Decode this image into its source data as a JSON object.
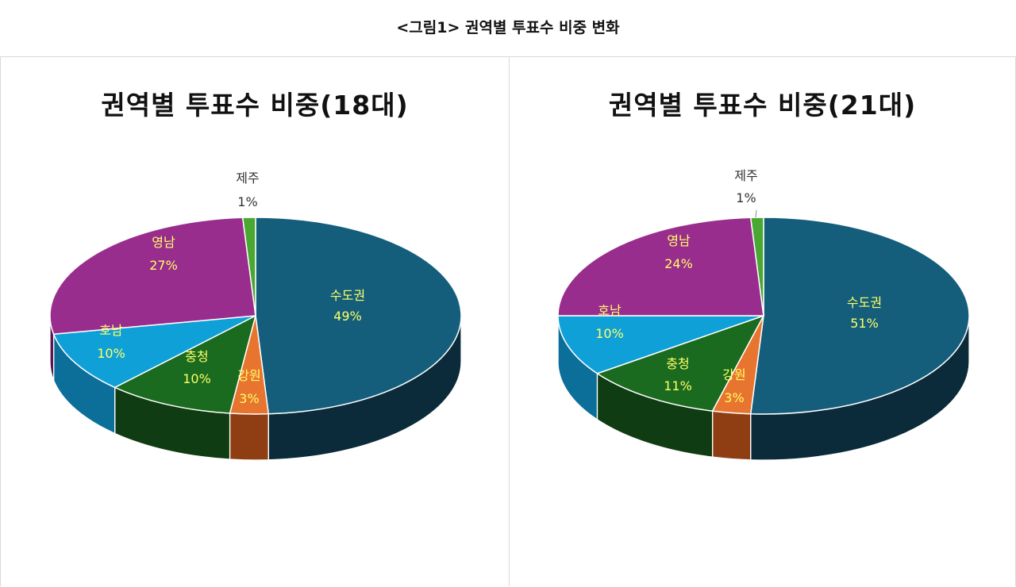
{
  "page": {
    "title": "<그림1> 권역별 투표수 비중 변화"
  },
  "chart_data": [
    {
      "type": "pie",
      "title": "권역별 투표수 비중(18대)",
      "slices": [
        {
          "label": "수도권",
          "value": 49,
          "display": "49%",
          "color": "#145e7c",
          "side": "#0b2b3a",
          "label_color": "#ffff66"
        },
        {
          "label": "강원",
          "value": 3,
          "display": "3%",
          "color": "#e8752f",
          "side": "#8f3e14",
          "label_color": "#ffff66"
        },
        {
          "label": "충청",
          "value": 10,
          "display": "10%",
          "color": "#1a6a1f",
          "side": "#0f3c12",
          "label_color": "#ffff66"
        },
        {
          "label": "호남",
          "value": 10,
          "display": "10%",
          "color": "#10a0d8",
          "side": "#0b6f9a",
          "label_color": "#ffff66"
        },
        {
          "label": "영남",
          "value": 27,
          "display": "27%",
          "color": "#992d8e",
          "side": "#5a1553",
          "label_color": "#ffff66"
        },
        {
          "label": "제주",
          "value": 1,
          "display": "1%",
          "color": "#48a832",
          "side": "#2a6a1d",
          "label_color": "#333333"
        }
      ]
    },
    {
      "type": "pie",
      "title": "권역별 투표수 비중(21대)",
      "slices": [
        {
          "label": "수도권",
          "value": 51,
          "display": "51%",
          "color": "#145e7c",
          "side": "#0b2b3a",
          "label_color": "#ffff66"
        },
        {
          "label": "강원",
          "value": 3,
          "display": "3%",
          "color": "#e8752f",
          "side": "#8f3e14",
          "label_color": "#ffff66"
        },
        {
          "label": "충청",
          "value": 11,
          "display": "11%",
          "color": "#1a6a1f",
          "side": "#0f3c12",
          "label_color": "#ffff66"
        },
        {
          "label": "호남",
          "value": 10,
          "display": "10%",
          "color": "#10a0d8",
          "side": "#0b6f9a",
          "label_color": "#ffff66"
        },
        {
          "label": "영남",
          "value": 24,
          "display": "24%",
          "color": "#992d8e",
          "side": "#5a1553",
          "label_color": "#ffff66"
        },
        {
          "label": "제주",
          "value": 1,
          "display": "1%",
          "color": "#48a832",
          "side": "#2a6a1d",
          "label_color": "#333333"
        }
      ]
    }
  ]
}
